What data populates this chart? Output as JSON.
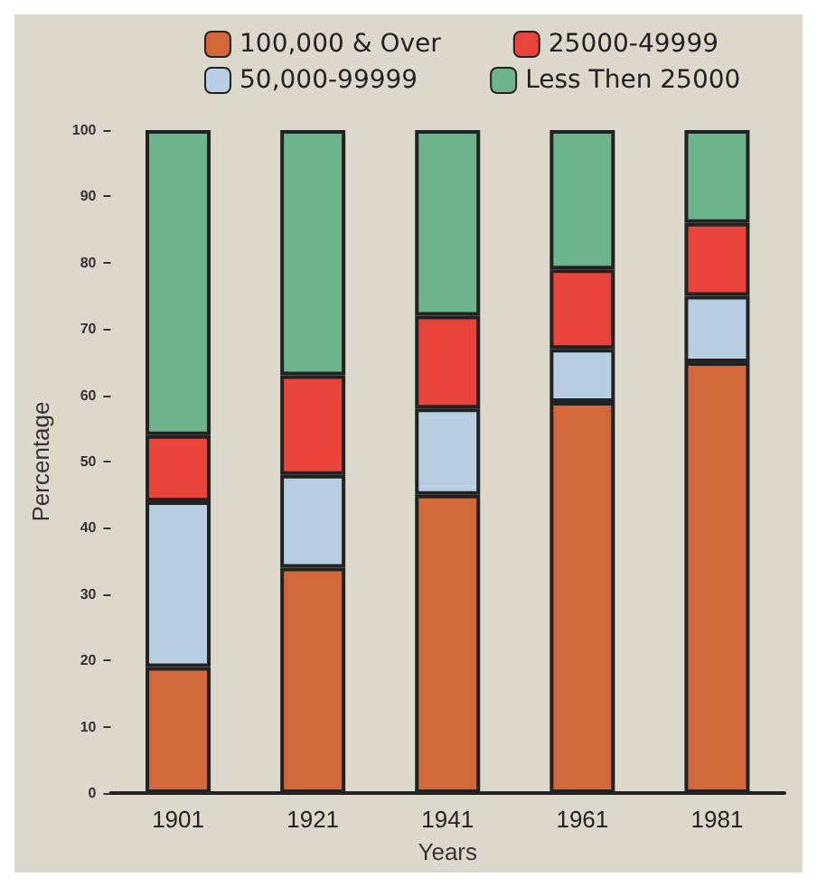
{
  "chart_data": {
    "type": "bar",
    "stacked": true,
    "categories": [
      "1901",
      "1921",
      "1941",
      "1961",
      "1981"
    ],
    "xlabel": "Years",
    "ylabel": "Percentage",
    "ylim": [
      0,
      100
    ],
    "yticks": [
      0,
      10,
      20,
      30,
      40,
      50,
      60,
      70,
      80,
      90,
      100
    ],
    "grid": false,
    "legend": "top",
    "series": [
      {
        "name": "100,000 & Over",
        "color": "#d2673a",
        "values": [
          19,
          34,
          45,
          59,
          65
        ]
      },
      {
        "name": "50,000-99999",
        "color": "#b8cfe3",
        "values": [
          25,
          14,
          13,
          8,
          10
        ]
      },
      {
        "name": "25000-49999",
        "color": "#e8443c",
        "values": [
          10,
          15,
          14,
          12,
          11
        ]
      },
      {
        "name": "Less Then 25000",
        "color": "#6db38c",
        "values": [
          46,
          37,
          28,
          21,
          14
        ]
      }
    ]
  }
}
